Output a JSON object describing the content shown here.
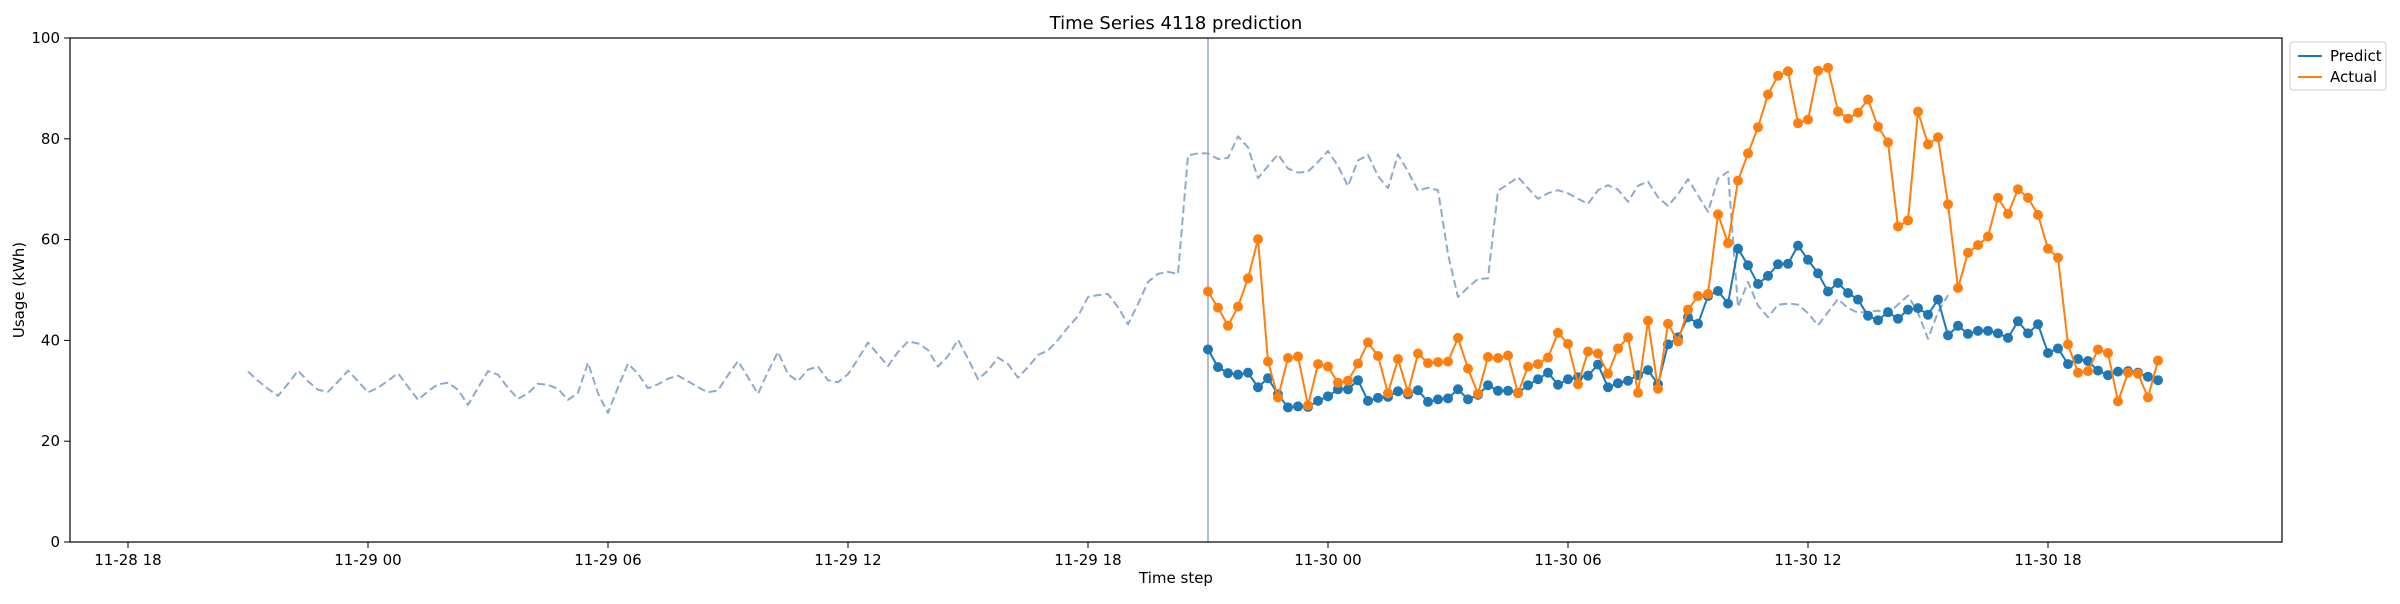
{
  "chart_data": {
    "type": "line",
    "title": "Time Series 4118 prediction",
    "xlabel": "Time step",
    "ylabel": "Usage (kWh)",
    "ylim": [
      0,
      100
    ],
    "xlim": [
      "2024-11-28 16:33",
      "2024-11-30 23:51"
    ],
    "y_ticks": [
      0,
      20,
      40,
      60,
      80,
      100
    ],
    "x_ticks": [
      {
        "t": "2024-11-28 18:00",
        "label": "11-28 18"
      },
      {
        "t": "2024-11-29 00:00",
        "label": "11-29 00"
      },
      {
        "t": "2024-11-29 06:00",
        "label": "11-29 06"
      },
      {
        "t": "2024-11-29 12:00",
        "label": "11-29 12"
      },
      {
        "t": "2024-11-29 18:00",
        "label": "11-29 18"
      },
      {
        "t": "2024-11-30 00:00",
        "label": "11-30 00"
      },
      {
        "t": "2024-11-30 06:00",
        "label": "11-30 06"
      },
      {
        "t": "2024-11-30 12:00",
        "label": "11-30 12"
      },
      {
        "t": "2024-11-30 18:00",
        "label": "11-30 18"
      }
    ],
    "grid": false,
    "legend_position": "top-right, outside plot",
    "forecast_start": "2024-11-29 21:00",
    "colors": {
      "history": "#8fa9cc",
      "predict": "#1f77b4",
      "actual": "#ff7f0e",
      "divider": "#8fa9cc"
    },
    "history": {
      "style": "dashed",
      "start": "2024-11-28 21:00",
      "step_minutes": 15,
      "values": [
        33.8,
        32.0,
        30.4,
        29.0,
        31.4,
        34.0,
        31.9,
        30.2,
        29.8,
        31.8,
        34.0,
        31.9,
        29.7,
        30.6,
        32.0,
        33.5,
        30.8,
        28.2,
        29.9,
        31.3,
        31.6,
        30.2,
        27.2,
        30.6,
        33.9,
        33.2,
        30.6,
        28.4,
        29.5,
        31.4,
        31.2,
        30.4,
        28.2,
        29.6,
        35.6,
        29.5,
        25.6,
        30.7,
        35.4,
        33.4,
        30.5,
        31.3,
        32.4,
        33.0,
        31.9,
        30.7,
        29.7,
        30.1,
        33.1,
        35.9,
        32.7,
        29.4,
        33.8,
        37.7,
        33.3,
        31.9,
        34.2,
        34.8,
        32.1,
        31.7,
        33.3,
        36.3,
        39.6,
        37.2,
        34.9,
        37.7,
        39.8,
        39.4,
        38.1,
        34.8,
        36.9,
        40.1,
        36.4,
        32.3,
        34.0,
        36.6,
        35.3,
        32.6,
        34.7,
        37.1,
        38.0,
        40.1,
        42.6,
        44.8,
        48.6,
        49.0,
        49.2,
        46.6,
        43.2,
        47.2,
        51.6,
        53.2,
        53.6,
        53.2,
        76.7,
        77.1,
        77.1,
        76.0,
        76.2,
        80.5,
        78.3,
        72.2,
        74.6,
        76.9,
        74.1,
        73.3,
        73.5,
        75.4,
        77.6,
        74.6,
        70.6,
        75.7,
        76.8,
        72.6,
        70.2,
        76.9,
        73.5,
        69.7,
        70.3,
        69.8,
        57.1,
        48.6,
        50.5,
        52.2,
        52.3,
        69.7,
        71.0,
        72.4,
        70.2,
        68.1,
        69.2,
        69.8,
        69.2,
        68.1,
        67.1,
        69.8,
        70.8,
        69.9,
        67.5,
        70.7,
        71.5,
        68.4,
        66.7,
        69.0,
        72.0,
        68.8,
        65.5,
        72.1,
        73.5,
        46.6,
        51.6,
        46.9,
        44.6,
        47.1,
        47.3,
        47.1,
        45.4,
        43.0,
        45.6,
        48.2,
        46.4,
        45.5,
        45.7,
        45.9,
        45.3,
        47.1,
        48.9,
        45.5,
        40.3,
        45.6,
        49.0
      ]
    },
    "series": [
      {
        "name": "Predict",
        "start": "2024-11-29 21:00",
        "step_minutes": 15,
        "values": [
          38.2,
          34.7,
          33.5,
          33.2,
          33.6,
          30.7,
          32.5,
          29.3,
          26.7,
          26.9,
          26.8,
          28.0,
          28.9,
          30.3,
          30.3,
          32.1,
          28.0,
          28.6,
          28.8,
          29.9,
          29.3,
          30.1,
          27.8,
          28.3,
          28.5,
          30.3,
          28.3,
          29.2,
          31.1,
          30.0,
          30.0,
          29.6,
          31.1,
          32.3,
          33.6,
          31.2,
          32.3,
          32.7,
          33.0,
          35.2,
          30.7,
          31.5,
          32.0,
          33.1,
          34.1,
          31.3,
          39.2,
          40.6,
          44.6,
          43.3,
          48.8,
          49.8,
          47.3,
          58.2,
          54.9,
          51.2,
          52.8,
          55.1,
          55.2,
          58.8,
          56.0,
          53.3,
          49.7,
          51.4,
          49.4,
          48.1,
          44.9,
          44.0,
          45.6,
          44.3,
          46.1,
          46.4,
          45.1,
          48.1,
          41.0,
          42.9,
          41.3,
          41.9,
          41.9,
          41.4,
          40.5,
          43.8,
          41.4,
          43.2,
          37.5,
          38.4,
          35.3,
          36.3,
          35.9,
          34.0,
          33.1,
          33.8,
          33.9,
          33.6,
          32.8,
          32.1
        ]
      },
      {
        "name": "Actual",
        "start": "2024-11-29 21:00",
        "step_minutes": 15,
        "values": [
          49.7,
          46.5,
          42.9,
          46.7,
          52.3,
          60.1,
          35.8,
          28.7,
          36.5,
          36.8,
          27.1,
          35.3,
          34.8,
          31.6,
          32.0,
          35.4,
          39.6,
          36.9,
          29.5,
          36.3,
          29.7,
          37.4,
          35.5,
          35.7,
          35.8,
          40.5,
          34.4,
          29.4,
          36.7,
          36.5,
          37.0,
          29.5,
          34.8,
          35.3,
          36.6,
          41.5,
          39.3,
          31.3,
          37.8,
          37.4,
          33.4,
          38.4,
          40.6,
          29.6,
          43.9,
          30.4,
          43.3,
          39.8,
          46.1,
          48.8,
          49.2,
          65.0,
          59.3,
          71.7,
          77.1,
          82.3,
          88.8,
          92.5,
          93.4,
          83.1,
          83.8,
          93.5,
          94.1,
          85.4,
          84.0,
          85.2,
          87.8,
          82.4,
          79.3,
          62.6,
          63.8,
          85.4,
          78.9,
          80.3,
          67.0,
          50.4,
          57.4,
          58.9,
          60.6,
          68.3,
          65.1,
          70.0,
          68.3,
          64.9,
          58.2,
          56.4,
          39.2,
          33.6,
          33.9,
          38.2,
          37.5,
          27.9,
          33.6,
          33.4,
          28.7,
          36.0
        ]
      }
    ]
  }
}
